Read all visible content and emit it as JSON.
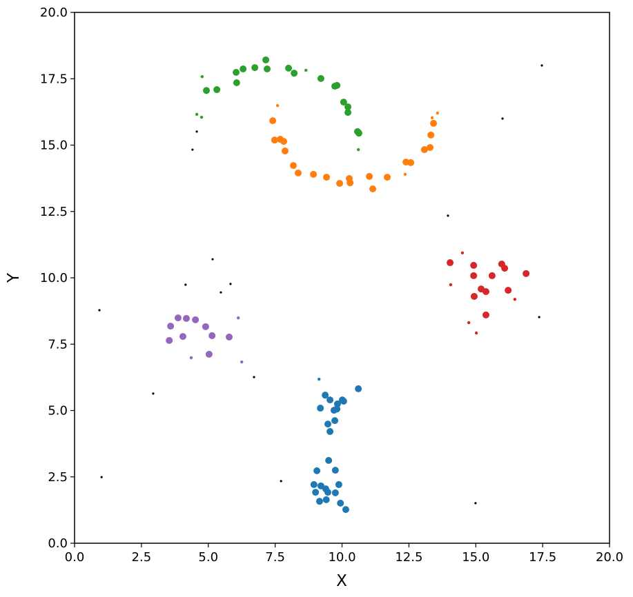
{
  "chart_data": {
    "type": "scatter",
    "title": "",
    "xlabel": "X",
    "ylabel": "Y",
    "xlim": [
      0,
      20
    ],
    "ylim": [
      0,
      20
    ],
    "grid": false,
    "xticks": [
      "0.0",
      "2.5",
      "5.0",
      "7.5",
      "10.0",
      "12.5",
      "15.0",
      "17.5",
      "20.0"
    ],
    "yticks": [
      "0.0",
      "2.5",
      "5.0",
      "7.5",
      "10.0",
      "12.5",
      "15.0",
      "17.5",
      "20.0"
    ],
    "marker_size_note": "s=1 large marker, s=0 small marker",
    "series": [
      {
        "color": "#1f77b4",
        "points": [
          [
            10.61,
            5.82,
            1
          ],
          [
            9.37,
            5.58,
            1
          ],
          [
            9.55,
            5.4,
            1
          ],
          [
            10.01,
            5.4,
            1
          ],
          [
            10.06,
            5.35,
            1
          ],
          [
            9.19,
            5.09,
            1
          ],
          [
            9.83,
            5.25,
            1
          ],
          [
            9.7,
            5.01,
            1
          ],
          [
            9.81,
            5.06,
            1
          ],
          [
            9.73,
            4.62,
            1
          ],
          [
            9.47,
            4.49,
            1
          ],
          [
            9.55,
            4.21,
            1
          ],
          [
            9.5,
            3.12,
            1
          ],
          [
            9.06,
            2.73,
            1
          ],
          [
            9.75,
            2.75,
            1
          ],
          [
            8.95,
            2.21,
            1
          ],
          [
            9.21,
            2.16,
            1
          ],
          [
            9.39,
            2.05,
            1
          ],
          [
            9.88,
            2.21,
            1
          ],
          [
            9.01,
            1.92,
            1
          ],
          [
            9.47,
            1.92,
            1
          ],
          [
            9.75,
            1.9,
            1
          ],
          [
            9.16,
            1.58,
            1
          ],
          [
            9.41,
            1.64,
            1
          ],
          [
            9.94,
            1.51,
            1
          ],
          [
            10.14,
            1.27,
            1
          ],
          [
            9.14,
            6.18,
            0
          ]
        ]
      },
      {
        "color": "#ff7f0e",
        "points": [
          [
            7.41,
            15.92,
            1
          ],
          [
            7.48,
            15.19,
            1
          ],
          [
            7.69,
            15.22,
            1
          ],
          [
            7.82,
            15.14,
            1
          ],
          [
            7.87,
            14.78,
            1
          ],
          [
            8.18,
            14.23,
            1
          ],
          [
            8.36,
            13.95,
            1
          ],
          [
            8.93,
            13.9,
            1
          ],
          [
            9.42,
            13.79,
            1
          ],
          [
            9.91,
            13.56,
            1
          ],
          [
            10.27,
            13.74,
            1
          ],
          [
            10.3,
            13.58,
            1
          ],
          [
            11.02,
            13.82,
            1
          ],
          [
            11.15,
            13.35,
            1
          ],
          [
            11.69,
            13.79,
            1
          ],
          [
            12.39,
            14.36,
            1
          ],
          [
            12.57,
            14.34,
            1
          ],
          [
            13.08,
            14.83,
            1
          ],
          [
            13.29,
            14.91,
            1
          ],
          [
            13.32,
            15.38,
            1
          ],
          [
            13.42,
            15.82,
            1
          ],
          [
            7.59,
            16.49,
            0
          ],
          [
            12.36,
            13.9,
            0
          ],
          [
            13.37,
            16.03,
            0
          ],
          [
            13.57,
            16.21,
            0
          ]
        ]
      },
      {
        "color": "#2ca02c",
        "points": [
          [
            4.93,
            17.06,
            1
          ],
          [
            5.32,
            17.09,
            1
          ],
          [
            6.04,
            17.74,
            1
          ],
          [
            6.06,
            17.35,
            1
          ],
          [
            6.3,
            17.87,
            1
          ],
          [
            6.74,
            17.92,
            1
          ],
          [
            7.15,
            18.21,
            1
          ],
          [
            7.2,
            17.87,
            1
          ],
          [
            8.0,
            17.9,
            1
          ],
          [
            8.21,
            17.71,
            1
          ],
          [
            9.21,
            17.51,
            1
          ],
          [
            9.73,
            17.22,
            1
          ],
          [
            9.81,
            17.25,
            1
          ],
          [
            10.06,
            16.62,
            1
          ],
          [
            10.22,
            16.44,
            1
          ],
          [
            10.22,
            16.23,
            1
          ],
          [
            10.58,
            15.51,
            1
          ],
          [
            10.63,
            15.45,
            1
          ],
          [
            4.77,
            17.58,
            0
          ],
          [
            4.57,
            16.16,
            0
          ],
          [
            4.75,
            16.05,
            0
          ],
          [
            8.65,
            17.82,
            0
          ],
          [
            10.61,
            14.83,
            0
          ]
        ]
      },
      {
        "color": "#d62728",
        "points": [
          [
            14.04,
            10.57,
            1
          ],
          [
            14.92,
            10.47,
            1
          ],
          [
            14.92,
            10.08,
            1
          ],
          [
            14.94,
            9.3,
            1
          ],
          [
            15.2,
            9.58,
            1
          ],
          [
            15.38,
            9.48,
            1
          ],
          [
            15.61,
            10.08,
            1
          ],
          [
            15.97,
            10.52,
            1
          ],
          [
            16.08,
            10.36,
            1
          ],
          [
            16.21,
            9.53,
            1
          ],
          [
            15.38,
            8.6,
            1
          ],
          [
            16.88,
            10.16,
            1
          ],
          [
            14.5,
            10.94,
            0
          ],
          [
            14.06,
            9.74,
            0
          ],
          [
            16.46,
            9.19,
            0
          ],
          [
            14.74,
            8.31,
            0
          ],
          [
            15.02,
            7.92,
            0
          ]
        ]
      },
      {
        "color": "#9467bd",
        "points": [
          [
            3.59,
            8.18,
            1
          ],
          [
            3.54,
            7.64,
            1
          ],
          [
            3.87,
            8.49,
            1
          ],
          [
            4.18,
            8.47,
            1
          ],
          [
            4.52,
            8.42,
            1
          ],
          [
            4.05,
            7.79,
            1
          ],
          [
            4.9,
            8.16,
            1
          ],
          [
            5.14,
            7.82,
            1
          ],
          [
            5.78,
            7.77,
            1
          ],
          [
            5.03,
            7.12,
            1
          ],
          [
            6.12,
            8.49,
            0
          ],
          [
            4.36,
            6.99,
            0
          ],
          [
            6.25,
            6.83,
            0
          ]
        ]
      },
      {
        "color": "#000000",
        "noise": true,
        "points": [
          [
            17.47,
            18.0,
            0
          ],
          [
            16.0,
            16.0,
            0
          ],
          [
            4.57,
            15.51,
            0
          ],
          [
            4.41,
            14.83,
            0
          ],
          [
            13.96,
            12.34,
            0
          ],
          [
            5.16,
            10.7,
            0
          ],
          [
            4.15,
            9.74,
            0
          ],
          [
            5.83,
            9.77,
            0
          ],
          [
            5.47,
            9.45,
            0
          ],
          [
            0.93,
            8.78,
            0
          ],
          [
            17.37,
            8.52,
            0
          ],
          [
            6.71,
            6.26,
            0
          ],
          [
            2.94,
            5.64,
            0
          ],
          [
            1.01,
            2.49,
            0
          ],
          [
            7.72,
            2.34,
            0
          ],
          [
            14.99,
            1.51,
            0
          ]
        ]
      }
    ]
  }
}
